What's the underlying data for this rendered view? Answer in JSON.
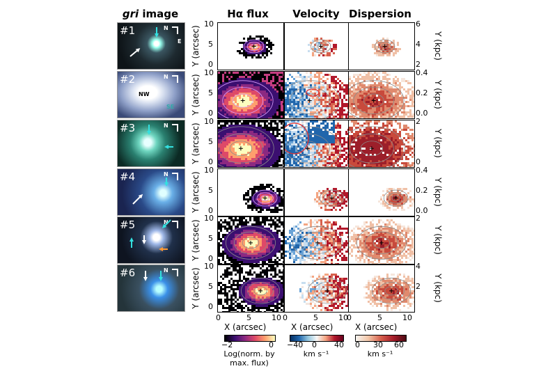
{
  "gri_title_prefix": "gri",
  "gri_title_suffix": " image",
  "columns": {
    "flux": "Hα flux",
    "velocity": "Velocity",
    "dispersion": "Dispersion"
  },
  "thumbnails": [
    {
      "num": "#1",
      "labels": [
        "N",
        "E"
      ]
    },
    {
      "num": "#2",
      "labels": [
        "N",
        "NW",
        "SE"
      ]
    },
    {
      "num": "#3",
      "labels": [
        "N"
      ]
    },
    {
      "num": "#4",
      "labels": [
        "N"
      ]
    },
    {
      "num": "#5",
      "labels": [
        "N"
      ]
    },
    {
      "num": "#6",
      "labels": [
        "N"
      ]
    }
  ],
  "left_axis": {
    "label": "Y (arcsec)",
    "ticks": [
      "10",
      "5",
      "0"
    ]
  },
  "bottom_axis": {
    "label": "X (arcsec)",
    "ticks": [
      "0",
      "5",
      "10"
    ]
  },
  "right_axes": [
    {
      "label": "Y (kpc)",
      "ticks": [
        "6",
        "4",
        "2"
      ]
    },
    {
      "label": "Y (kpc)",
      "ticks": [
        "0.4",
        "0.2",
        "0.0"
      ]
    },
    {
      "label": "Y (kpc)",
      "ticks": [
        "2",
        "",
        "0"
      ]
    },
    {
      "label": "Y (kpc)",
      "ticks": [
        "0.4",
        "0.2",
        "0.0"
      ]
    },
    {
      "label": "Y (kpc)",
      "ticks": [
        "2",
        "",
        ""
      ]
    },
    {
      "label": "Y (kpc)",
      "ticks": [
        "4",
        "2",
        ""
      ]
    }
  ],
  "colorbars": {
    "flux": {
      "ticks": [
        "−2",
        "0"
      ],
      "label1": "Log(norm. by",
      "label2": "max. flux)",
      "colors": [
        "#000004",
        "#3b0f70",
        "#8c2981",
        "#de4968",
        "#fe9f6d",
        "#fcfdbf"
      ]
    },
    "velocity": {
      "ticks": [
        "−40",
        "0",
        "40"
      ],
      "label": "km s⁻¹",
      "colors": [
        "#053061",
        "#2166ac",
        "#92c5de",
        "#f7f7f7",
        "#f4a582",
        "#b2182b",
        "#67001f"
      ]
    },
    "dispersion": {
      "ticks": [
        "0",
        "30",
        "60"
      ],
      "label": "km s⁻¹",
      "colors": [
        "#f7f4f0",
        "#f2c6a8",
        "#d6604d",
        "#a61c2a",
        "#4d0a14"
      ]
    }
  },
  "colors": {
    "cyan_arrow": "#33e0e0",
    "white_arrow": "#ffffff",
    "orange_arrow": "#ff9933"
  }
}
